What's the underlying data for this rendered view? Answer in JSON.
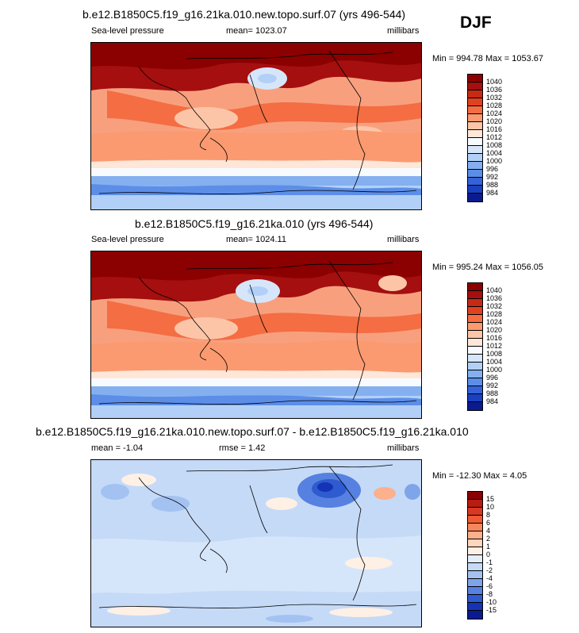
{
  "season": "DJF",
  "panels": [
    {
      "title": "b.e12.B1850C5.f19_g16.21ka.010.new.topo.surf.07 (yrs 496-544)",
      "variable": "Sea-level pressure",
      "stat": "mean= 1023.07",
      "units": "millibars",
      "minmax": "Min = 994.78 Max = 1053.67",
      "levels": [
        "1040",
        "1036",
        "1032",
        "1028",
        "1024",
        "1020",
        "1016",
        "1012",
        "1008",
        "1004",
        "1000",
        "996",
        "992",
        "988",
        "984"
      ],
      "colors": [
        "#8b0000",
        "#a50f0f",
        "#c62a15",
        "#e0421f",
        "#f46d43",
        "#fb9a70",
        "#fdc5a8",
        "#fee7d8",
        "#f7fbff",
        "#d6e6fa",
        "#b2d0f7",
        "#84b0f0",
        "#5c8ee8",
        "#3462d8",
        "#1a3fbf",
        "#0a1a8f"
      ]
    },
    {
      "title": "b.e12.B1850C5.f19_g16.21ka.010 (yrs 496-544)",
      "variable": "Sea-level pressure",
      "stat": "mean= 1024.11",
      "units": "millibars",
      "minmax": "Min = 995.24 Max = 1056.05",
      "levels": [
        "1040",
        "1036",
        "1032",
        "1028",
        "1024",
        "1020",
        "1016",
        "1012",
        "1008",
        "1004",
        "1000",
        "996",
        "992",
        "988",
        "984"
      ],
      "colors": [
        "#8b0000",
        "#a50f0f",
        "#c62a15",
        "#e0421f",
        "#f46d43",
        "#fb9a70",
        "#fdc5a8",
        "#fee7d8",
        "#f7fbff",
        "#d6e6fa",
        "#b2d0f7",
        "#84b0f0",
        "#5c8ee8",
        "#3462d8",
        "#1a3fbf",
        "#0a1a8f"
      ]
    },
    {
      "title": "b.e12.B1850C5.f19_g16.21ka.010.new.topo.surf.07 - b.e12.B1850C5.f19_g16.21ka.010",
      "variable": "mean =  -1.04",
      "stat": "rmse =   1.42",
      "units": "millibars",
      "minmax": "Min = -12.30 Max =   4.05",
      "levels": [
        "15",
        "10",
        "8",
        "6",
        "4",
        "2",
        "1",
        "0",
        "-1",
        "-2",
        "-4",
        "-6",
        "-8",
        "-10",
        "-15"
      ],
      "colors": [
        "#8b0000",
        "#b81d0f",
        "#d73a22",
        "#ef5b34",
        "#f8865c",
        "#fcb08c",
        "#fed5bd",
        "#fff0e6",
        "#e3eefc",
        "#c5daf7",
        "#a3c2f1",
        "#7ea5ea",
        "#5681e0",
        "#2f5bd0",
        "#1534b5",
        "#0a1a8f"
      ]
    }
  ],
  "icons": {
    "map_features": "coastline-outline"
  }
}
